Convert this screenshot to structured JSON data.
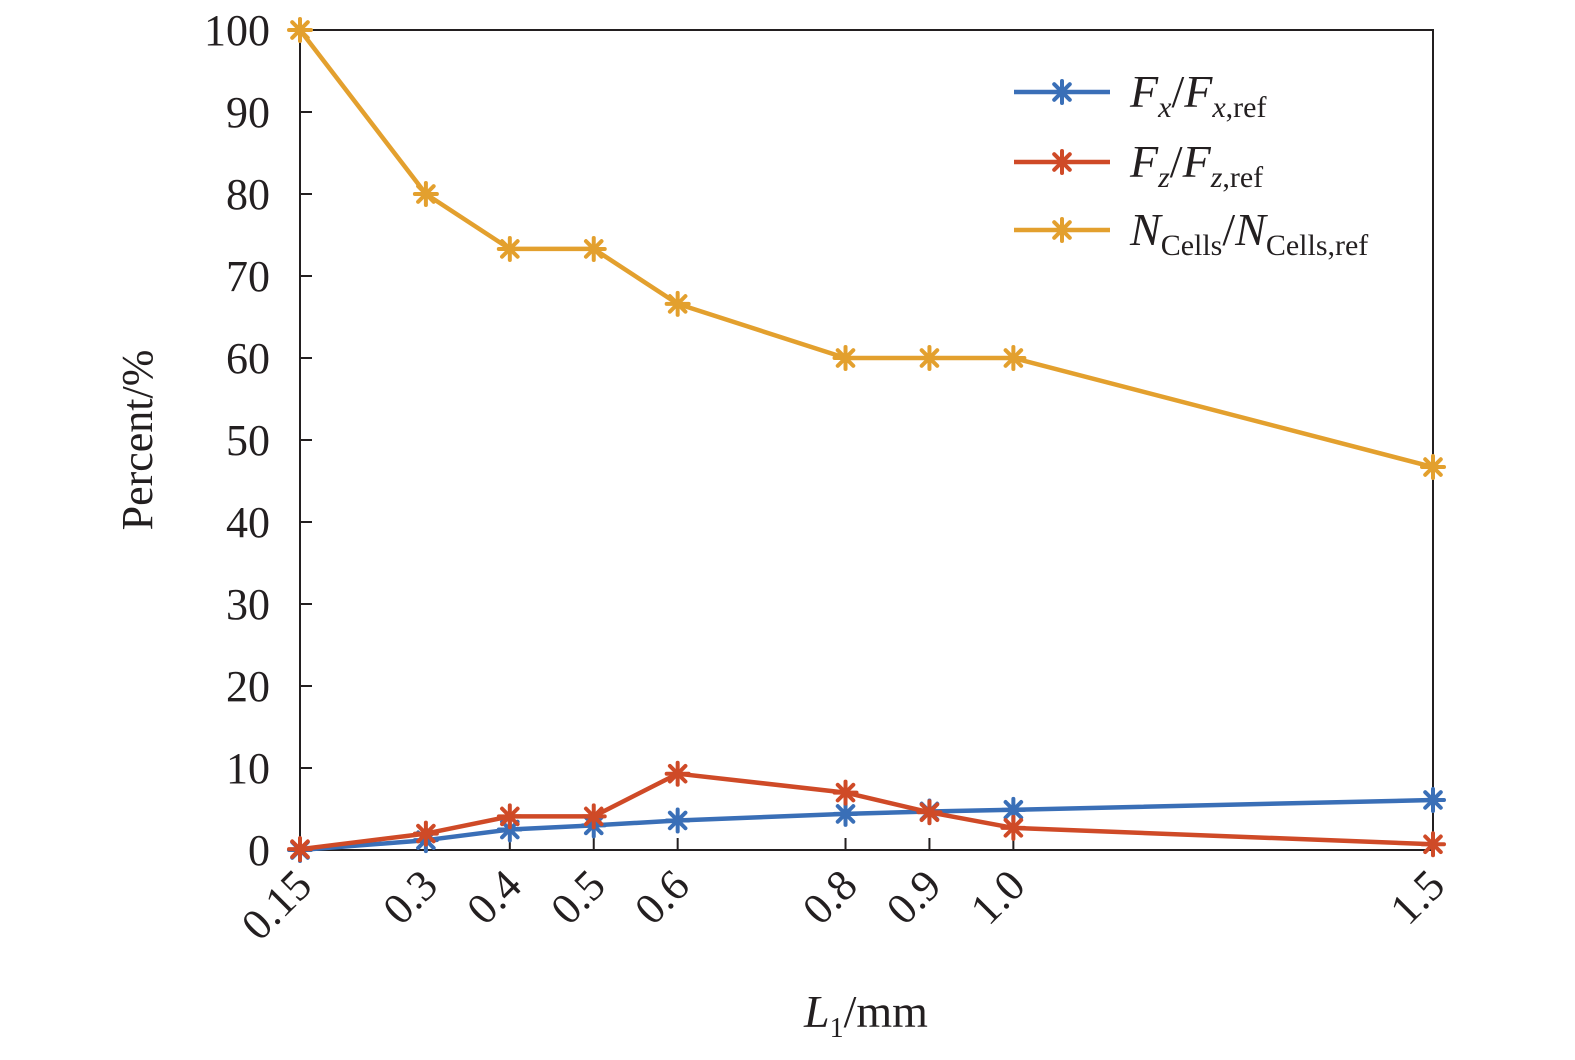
{
  "chart_data": {
    "type": "line",
    "x": [
      0.15,
      0.3,
      0.4,
      0.5,
      0.6,
      0.8,
      0.9,
      1.0,
      1.5
    ],
    "x_tick_labels": [
      "0.15",
      "0.3",
      "0.4",
      "0.5",
      "0.6",
      "0.8",
      "0.9",
      "1.0",
      "1.5"
    ],
    "xlabel": {
      "main": "L",
      "sub": "1",
      "unit": "/mm"
    },
    "ylabel": "Percent/%",
    "ylim": [
      0,
      100
    ],
    "y_ticks": [
      0,
      10,
      20,
      30,
      40,
      50,
      60,
      70,
      80,
      90,
      100
    ],
    "grid": false,
    "legend_position": "top-right",
    "marker": "asterisk",
    "series": [
      {
        "key": "fx",
        "legend": {
          "a": "F",
          "a_sub": "x",
          "b": "F",
          "b_sub": "x,ref"
        },
        "color": "#3a6fb7",
        "values": [
          0,
          1.2,
          2.5,
          3.0,
          3.6,
          4.4,
          4.7,
          4.9,
          6.1
        ]
      },
      {
        "key": "fz",
        "legend": {
          "a": "F",
          "a_sub": "z",
          "b": "F",
          "b_sub": "z,ref"
        },
        "color": "#cf4a27",
        "values": [
          0.1,
          2.0,
          4.1,
          4.1,
          9.3,
          7.0,
          4.6,
          2.7,
          0.7
        ]
      },
      {
        "key": "ncells",
        "legend": {
          "a": "N",
          "a_sub": "Cells",
          "b": "N",
          "b_sub": "Cells,ref"
        },
        "color": "#e3a02e",
        "values": [
          100,
          80,
          73.3,
          73.3,
          66.6,
          60,
          60,
          60,
          46.7
        ]
      }
    ]
  }
}
